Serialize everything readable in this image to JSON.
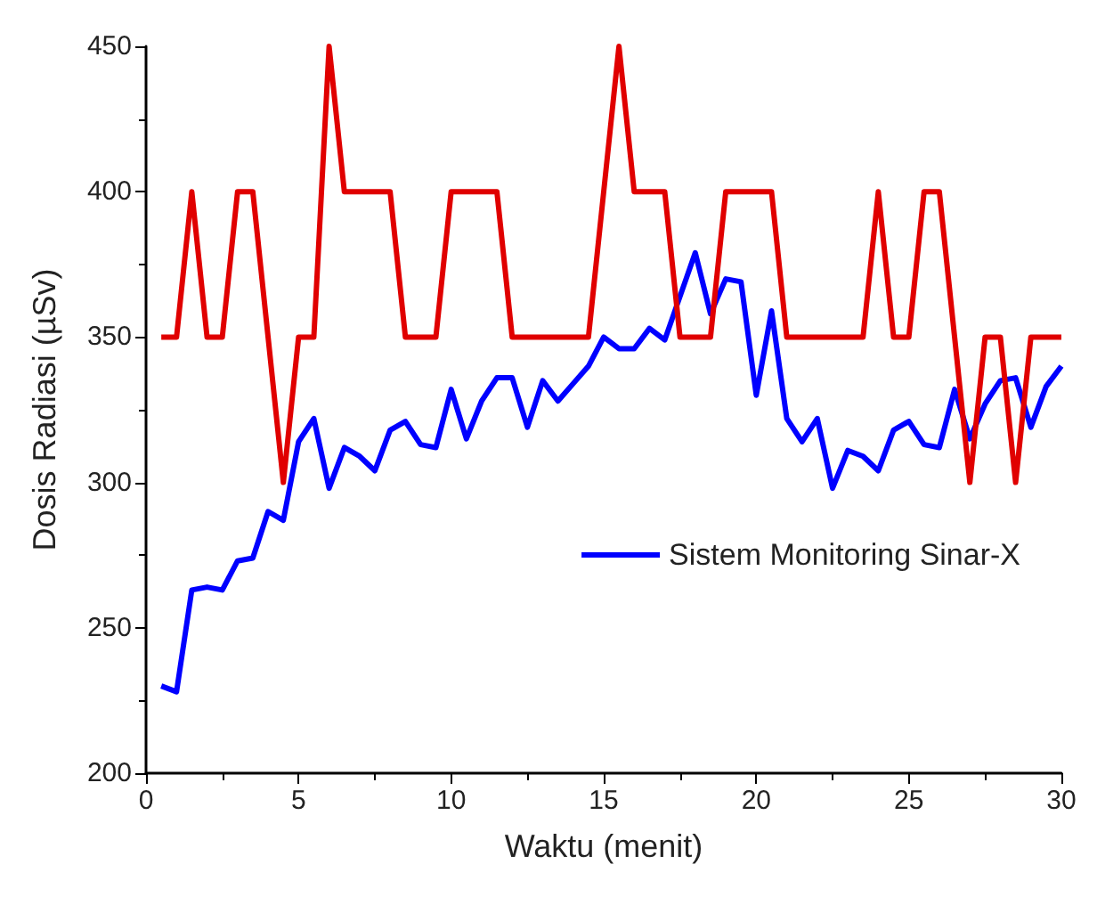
{
  "chart_data": {
    "type": "line",
    "xlabel": "Waktu (menit)",
    "ylabel": "Dosis Radiasi (µSv)",
    "x": [
      0.5,
      1,
      1.5,
      2,
      2.5,
      3,
      3.5,
      4,
      4.5,
      5,
      5.5,
      6,
      6.5,
      7,
      7.5,
      8,
      8.5,
      9,
      9.5,
      10,
      10.5,
      11,
      11.5,
      12,
      12.5,
      13,
      13.5,
      14,
      14.5,
      15,
      15.5,
      16,
      16.5,
      17,
      17.5,
      18,
      18.5,
      19,
      19.5,
      20,
      20.5,
      21,
      21.5,
      22,
      22.5,
      23,
      23.5,
      24,
      24.5,
      25,
      25.5,
      26,
      26.5,
      27,
      27.5,
      28,
      28.5,
      29,
      29.5,
      30
    ],
    "series": [
      {
        "name": "Sistem Monitoring Sinar-X",
        "color": "#0000ff",
        "values": [
          230,
          228,
          263,
          264,
          263,
          273,
          274,
          290,
          287,
          314,
          322,
          298,
          312,
          309,
          304,
          318,
          321,
          313,
          312,
          332,
          315,
          328,
          336,
          336,
          319,
          335,
          328,
          334,
          340,
          350,
          346,
          346,
          353,
          349,
          364,
          379,
          358,
          370,
          369,
          330,
          359,
          322,
          314,
          322,
          298,
          311,
          309,
          304,
          318,
          321,
          313,
          312,
          332,
          315,
          327,
          335,
          336,
          319,
          333,
          340
        ]
      },
      {
        "color": "#e00000",
        "values": [
          350,
          350,
          400,
          350,
          350,
          400,
          400,
          350,
          300,
          350,
          350,
          450,
          400,
          400,
          400,
          400,
          350,
          350,
          350,
          400,
          400,
          400,
          400,
          350,
          350,
          350,
          350,
          350,
          350,
          400,
          450,
          400,
          400,
          400,
          350,
          350,
          350,
          400,
          400,
          400,
          400,
          350,
          350,
          350,
          350,
          350,
          350,
          400,
          350,
          350,
          400,
          400,
          350,
          300,
          350,
          350,
          300,
          350,
          350,
          350
        ]
      }
    ],
    "xlim": [
      0,
      30
    ],
    "xticks": [
      0,
      5,
      10,
      15,
      20,
      25,
      30
    ],
    "ylim": [
      200,
      450
    ],
    "yticks": [
      200,
      250,
      300,
      350,
      400,
      450
    ],
    "grid": false,
    "legend": "right",
    "marker": "none",
    "line_style": "solid"
  }
}
